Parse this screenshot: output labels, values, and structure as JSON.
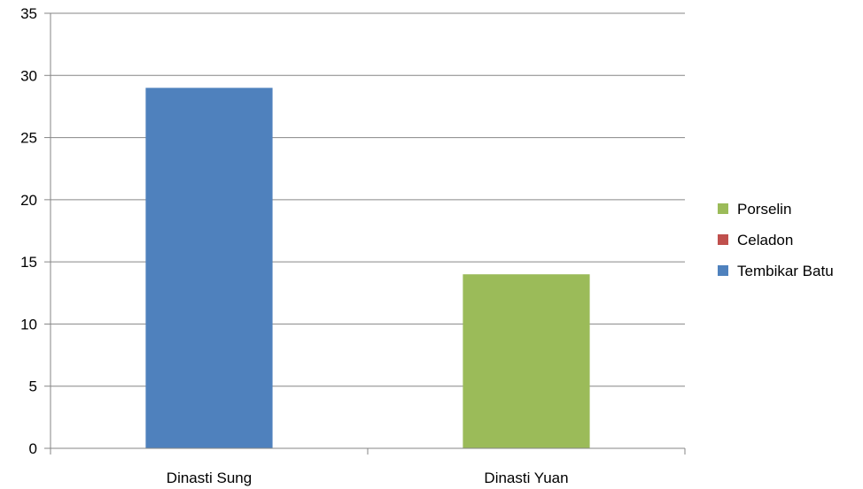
{
  "chart_data": {
    "type": "bar",
    "stacked": true,
    "categories": [
      "Dinasti Sung",
      "Dinasti Yuan"
    ],
    "series": [
      {
        "name": "Tembikar Batu",
        "color": "#4f81bd",
        "values": [
          29,
          0
        ]
      },
      {
        "name": "Celadon",
        "color": "#c0504d",
        "values": [
          0,
          0
        ]
      },
      {
        "name": "Porselin",
        "color": "#9bbb59",
        "values": [
          0,
          14
        ]
      }
    ],
    "legend_order": [
      "Porselin",
      "Celadon",
      "Tembikar Batu"
    ],
    "y_ticks": [
      "0",
      "5",
      "10",
      "15",
      "20",
      "25",
      "30",
      "35"
    ],
    "ylim": [
      0,
      35
    ],
    "grid": true,
    "legend_position": "right"
  }
}
